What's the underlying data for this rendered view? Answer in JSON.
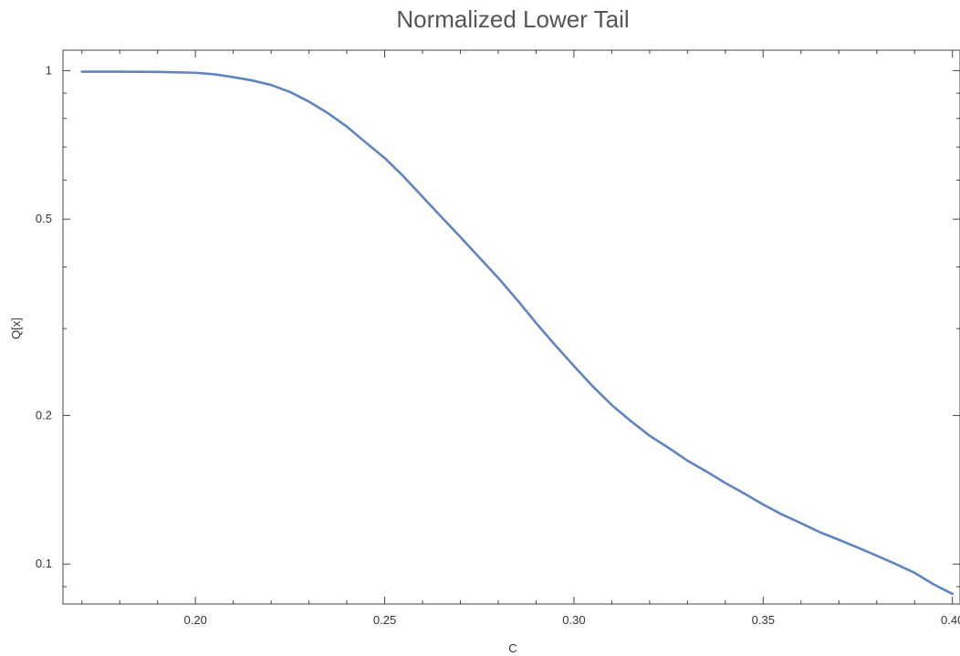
{
  "chart_data": {
    "type": "line",
    "title": "Normalized Lower Tail",
    "xlabel": "C",
    "ylabel": "Q[x]",
    "xlim": [
      0.165,
      0.402
    ],
    "ylim": [
      0.083,
      1.1
    ],
    "y_scale": "log",
    "grid": false,
    "legend": "none",
    "x_ticks": [
      {
        "value": 0.2,
        "label": "0.20"
      },
      {
        "value": 0.25,
        "label": "0.25"
      },
      {
        "value": 0.3,
        "label": "0.30"
      },
      {
        "value": 0.35,
        "label": "0.35"
      },
      {
        "value": 0.4,
        "label": "0.40"
      }
    ],
    "y_ticks": [
      {
        "value": 0.1,
        "label": "0.1"
      },
      {
        "value": 0.2,
        "label": "0.2"
      },
      {
        "value": 0.5,
        "label": "0.5"
      },
      {
        "value": 1,
        "label": "1"
      }
    ],
    "series": [
      {
        "color": "#5f84bf",
        "x": [
          0.17,
          0.18,
          0.19,
          0.2,
          0.205,
          0.21,
          0.215,
          0.22,
          0.225,
          0.23,
          0.235,
          0.24,
          0.245,
          0.25,
          0.255,
          0.26,
          0.265,
          0.27,
          0.275,
          0.28,
          0.285,
          0.29,
          0.295,
          0.3,
          0.305,
          0.31,
          0.315,
          0.32,
          0.325,
          0.33,
          0.335,
          0.34,
          0.345,
          0.35,
          0.355,
          0.36,
          0.365,
          0.37,
          0.375,
          0.38,
          0.385,
          0.39,
          0.395,
          0.4
        ],
        "y": [
          0.995,
          0.995,
          0.994,
          0.99,
          0.983,
          0.97,
          0.955,
          0.935,
          0.905,
          0.865,
          0.82,
          0.77,
          0.715,
          0.665,
          0.61,
          0.555,
          0.505,
          0.46,
          0.418,
          0.38,
          0.343,
          0.308,
          0.278,
          0.252,
          0.229,
          0.21,
          0.195,
          0.182,
          0.172,
          0.162,
          0.154,
          0.146,
          0.139,
          0.132,
          0.126,
          0.121,
          0.116,
          0.112,
          0.108,
          0.104,
          0.1,
          0.096,
          0.091,
          0.087
        ]
      }
    ]
  }
}
